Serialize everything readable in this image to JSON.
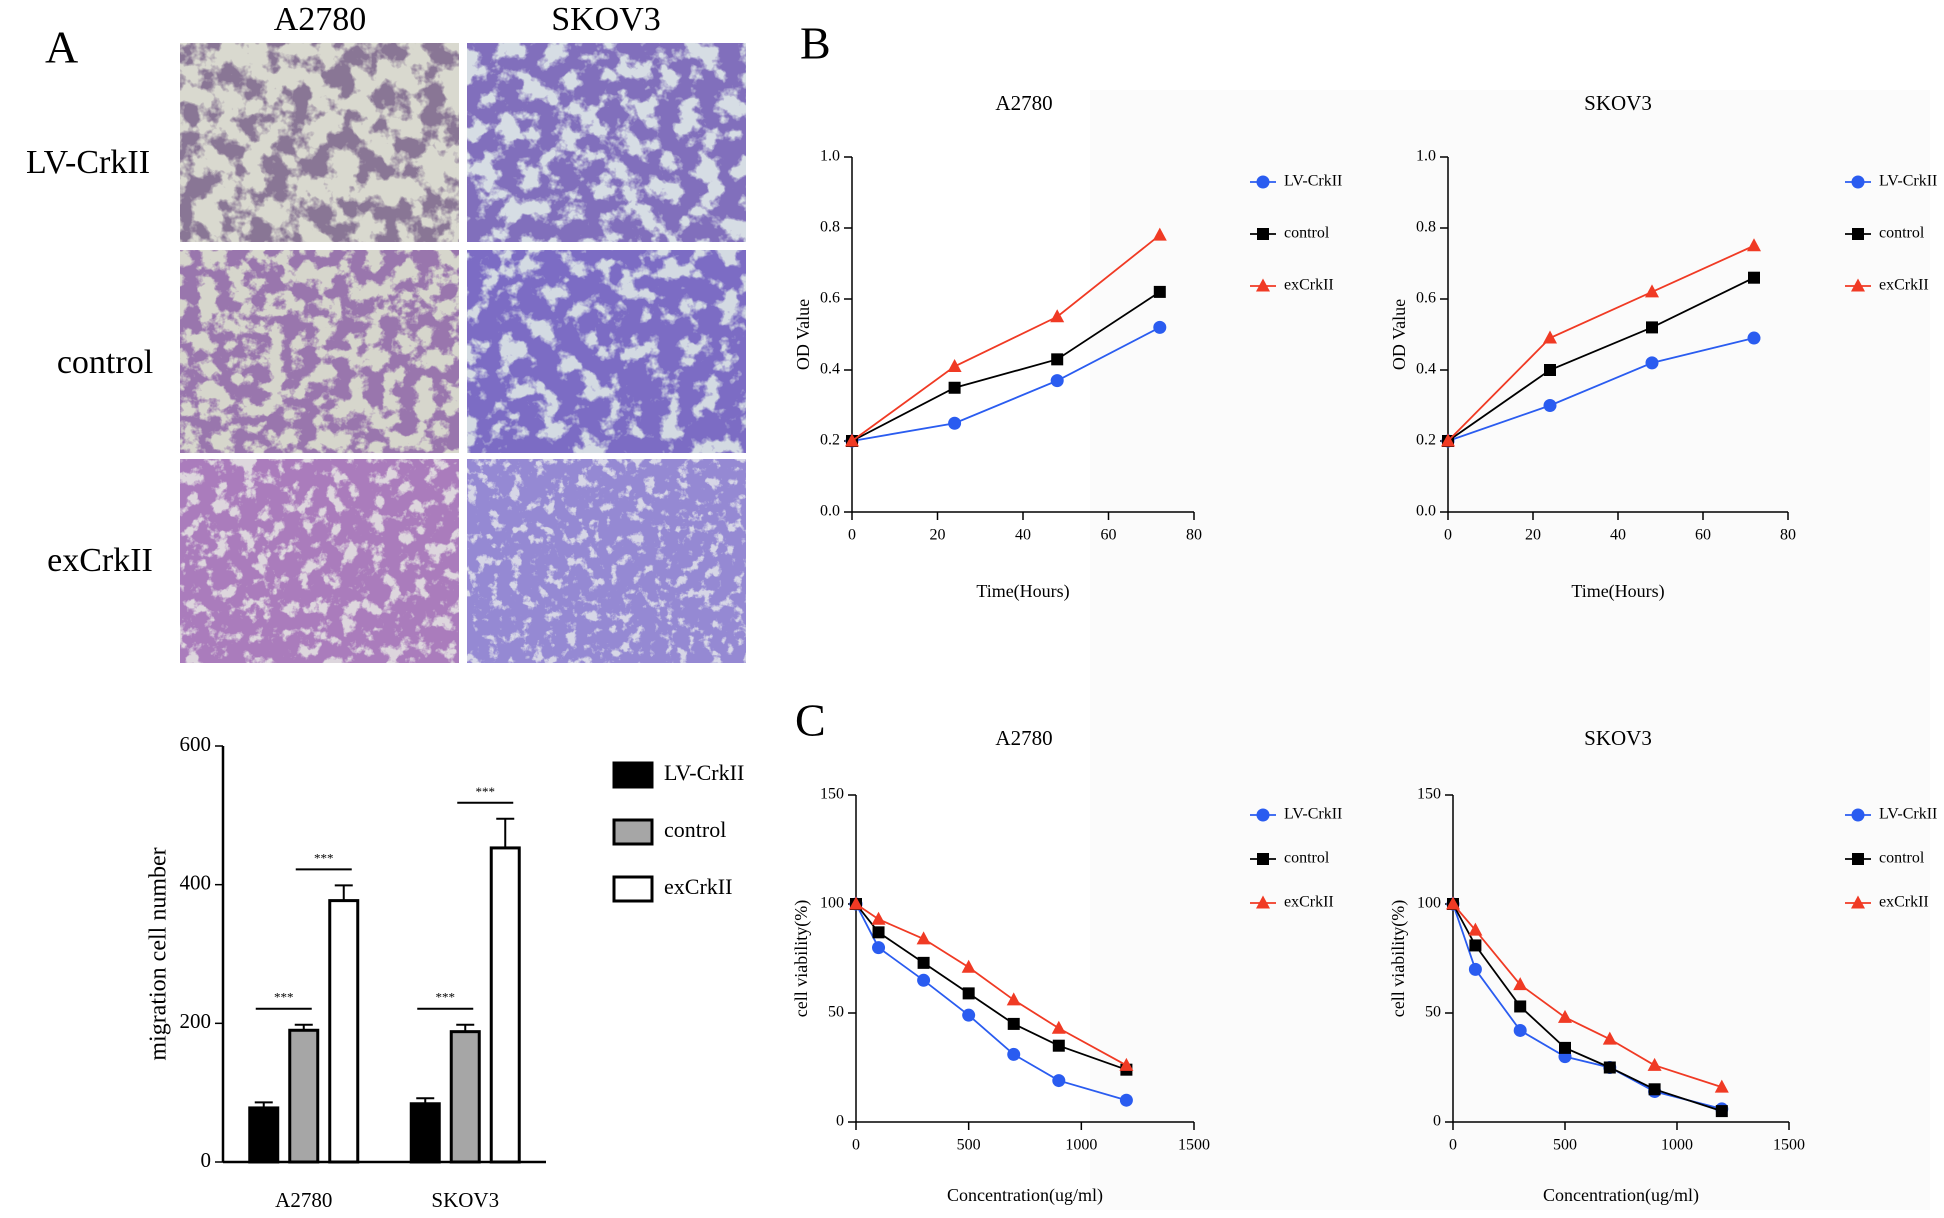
{
  "figure": {
    "panel_labels": [
      "A",
      "B",
      "C"
    ],
    "image_columns": [
      "A2780",
      "SKOV3"
    ],
    "image_rows": [
      "LV-CrkII",
      "control",
      "exCrkII"
    ]
  },
  "chart_data": [
    {
      "type": "bar",
      "categories": [
        "A2780",
        "SKOV3"
      ],
      "ylabel": "migration cell number",
      "ylim": [
        0,
        600
      ],
      "yticks": [
        0,
        200,
        400,
        600
      ],
      "legend": "right",
      "series": [
        {
          "name": "LV-CrkII",
          "color": "#000000",
          "values": [
            78,
            84
          ],
          "errors": [
            8,
            8
          ]
        },
        {
          "name": "control",
          "color": "#a6a6a6",
          "values": [
            190,
            188
          ],
          "errors": [
            8,
            10
          ]
        },
        {
          "name": "exCrkII",
          "color": "#ffffff",
          "values": [
            377,
            453
          ],
          "errors": [
            22,
            42
          ]
        }
      ],
      "significance": [
        "***",
        "***",
        "***",
        "***"
      ]
    },
    {
      "type": "line",
      "title": "A2780",
      "xlabel": "Time(Hours)",
      "ylabel": "OD Value",
      "x": [
        0,
        24,
        48,
        72
      ],
      "xlim": [
        0,
        80
      ],
      "xticks": [
        0,
        20,
        40,
        60,
        80
      ],
      "ylim": [
        0,
        1
      ],
      "yticks": [
        {
          "value": 0,
          "label": "0.0"
        },
        0.2,
        0.4,
        0.6,
        0.8,
        {
          "value": 1,
          "label": "1.0"
        }
      ],
      "legend": "right",
      "series": [
        {
          "name": "LV-CrkII",
          "color": "#2a5cf0",
          "marker": "circle",
          "values": [
            0.2,
            0.25,
            0.37,
            0.52
          ]
        },
        {
          "name": "control",
          "color": "#000000",
          "marker": "square",
          "values": [
            0.2,
            0.35,
            0.43,
            0.62
          ]
        },
        {
          "name": "exCrkII",
          "color": "#f03a24",
          "marker": "triangle",
          "values": [
            0.2,
            0.41,
            0.55,
            0.78
          ]
        }
      ]
    },
    {
      "type": "line",
      "title": "SKOV3",
      "xlabel": "Time(Hours)",
      "ylabel": "OD Value",
      "x": [
        0,
        24,
        48,
        72
      ],
      "xlim": [
        0,
        80
      ],
      "xticks": [
        0,
        20,
        40,
        60,
        80
      ],
      "ylim": [
        0,
        1
      ],
      "yticks": [
        {
          "value": 0,
          "label": "0.0"
        },
        0.2,
        0.4,
        0.6,
        0.8,
        {
          "value": 1,
          "label": "1.0"
        }
      ],
      "legend": "right",
      "series": [
        {
          "name": "LV-CrkII",
          "color": "#2a5cf0",
          "marker": "circle",
          "values": [
            0.2,
            0.3,
            0.42,
            0.49
          ]
        },
        {
          "name": "control",
          "color": "#000000",
          "marker": "square",
          "values": [
            0.2,
            0.4,
            0.52,
            0.66
          ]
        },
        {
          "name": "exCrkII",
          "color": "#f03a24",
          "marker": "triangle",
          "values": [
            0.2,
            0.49,
            0.62,
            0.75
          ]
        }
      ]
    },
    {
      "type": "line",
      "title": "A2780",
      "xlabel": "Concentration(ug/ml)",
      "ylabel": "cell viability(%)",
      "x": [
        0,
        100,
        300,
        500,
        700,
        900,
        1200
      ],
      "xlim": [
        0,
        1500
      ],
      "xticks": [
        0,
        500,
        1000,
        1500
      ],
      "ylim": [
        0,
        150
      ],
      "yticks": [
        0,
        50,
        100,
        150
      ],
      "legend": "right",
      "series": [
        {
          "name": "LV-CrkII",
          "color": "#2a5cf0",
          "marker": "circle",
          "values": [
            100,
            80,
            65,
            49,
            31,
            19,
            10
          ]
        },
        {
          "name": "control",
          "color": "#000000",
          "marker": "square",
          "values": [
            100,
            87,
            73,
            59,
            45,
            35,
            24
          ]
        },
        {
          "name": "exCrkII",
          "color": "#f03a24",
          "marker": "triangle",
          "values": [
            100,
            93,
            84,
            71,
            56,
            43,
            26
          ]
        }
      ]
    },
    {
      "type": "line",
      "title": "SKOV3",
      "xlabel": "Concentration(ug/ml)",
      "ylabel": "cell viability(%)",
      "x": [
        0,
        100,
        300,
        500,
        700,
        900,
        1200
      ],
      "xlim": [
        0,
        1500
      ],
      "xticks": [
        0,
        500,
        1000,
        1500
      ],
      "ylim": [
        0,
        150
      ],
      "yticks": [
        0,
        50,
        100,
        150
      ],
      "legend": "right",
      "series": [
        {
          "name": "LV-CrkII",
          "color": "#2a5cf0",
          "marker": "circle",
          "values": [
            100,
            70,
            42,
            30,
            25,
            14,
            6
          ]
        },
        {
          "name": "control",
          "color": "#000000",
          "marker": "square",
          "values": [
            100,
            81,
            53,
            34,
            25,
            15,
            5
          ]
        },
        {
          "name": "exCrkII",
          "color": "#f03a24",
          "marker": "triangle",
          "values": [
            100,
            88,
            63,
            48,
            38,
            26,
            16
          ]
        }
      ]
    }
  ]
}
